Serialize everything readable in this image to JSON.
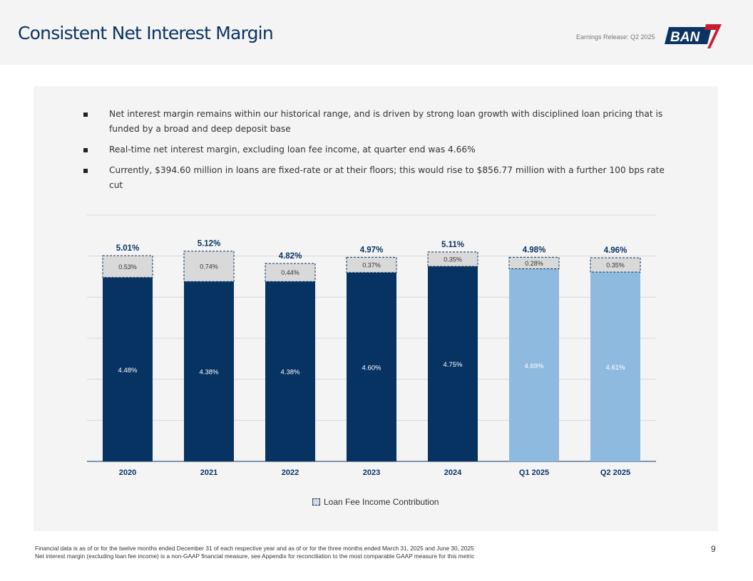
{
  "header": {
    "title": "Consistent Net Interest Margin",
    "release": "Earnings Release: Q2 2025",
    "logo_text": "BANK7"
  },
  "bullets": [
    "Net interest margin remains within our historical range, and is driven by strong loan growth with disciplined loan pricing that is funded by a broad and deep deposit base",
    "Real-time net interest margin, excluding loan fee income, at quarter end was 4.66%",
    "Currently, $394.60 million in loans are fixed-rate or at their floors; this would rise to $856.77 million with a further 100 bps rate cut"
  ],
  "chart_data": {
    "type": "bar",
    "stacked": true,
    "categories": [
      "2020",
      "2021",
      "2022",
      "2023",
      "2024",
      "Q1 2025",
      "Q2 2025"
    ],
    "series": [
      {
        "name": "Net Interest Margin excl. Loan Fees",
        "values": [
          4.48,
          4.38,
          4.38,
          4.6,
          4.75,
          4.69,
          4.61
        ],
        "labels": [
          "4.48%",
          "4.38%",
          "4.38%",
          "4.60%",
          "4.75%",
          "4.69%",
          "4.61%"
        ]
      },
      {
        "name": "Loan Fee Income Contribution",
        "values": [
          0.53,
          0.74,
          0.44,
          0.37,
          0.35,
          0.28,
          0.35
        ],
        "labels": [
          "0.53%",
          "0.74%",
          "0.44%",
          "0.37%",
          "0.35%",
          "0.28%",
          "0.35%"
        ]
      }
    ],
    "totals": [
      "5.01%",
      "5.12%",
      "4.82%",
      "4.97%",
      "5.11%",
      "4.98%",
      "4.96%"
    ],
    "ylim": [
      0,
      6
    ],
    "grid": true,
    "legend": "bottom-center",
    "colors": {
      "annual": "#073362",
      "quarterly": "#8fbae0",
      "fee": "#d9d9d9"
    }
  },
  "legend_label": "Loan Fee Income Contribution",
  "footnotes": [
    "Financial data is as of or for the twelve months ended December 31 of each respective year and as of or for the three months ended March 31, 2025 and June 30, 2025",
    "Net interest margin (excluding loan fee income) is a non-GAAP financial measure, see Appendix for reconciliation to the most comparable GAAP measure for this metric"
  ],
  "page_number": "9"
}
